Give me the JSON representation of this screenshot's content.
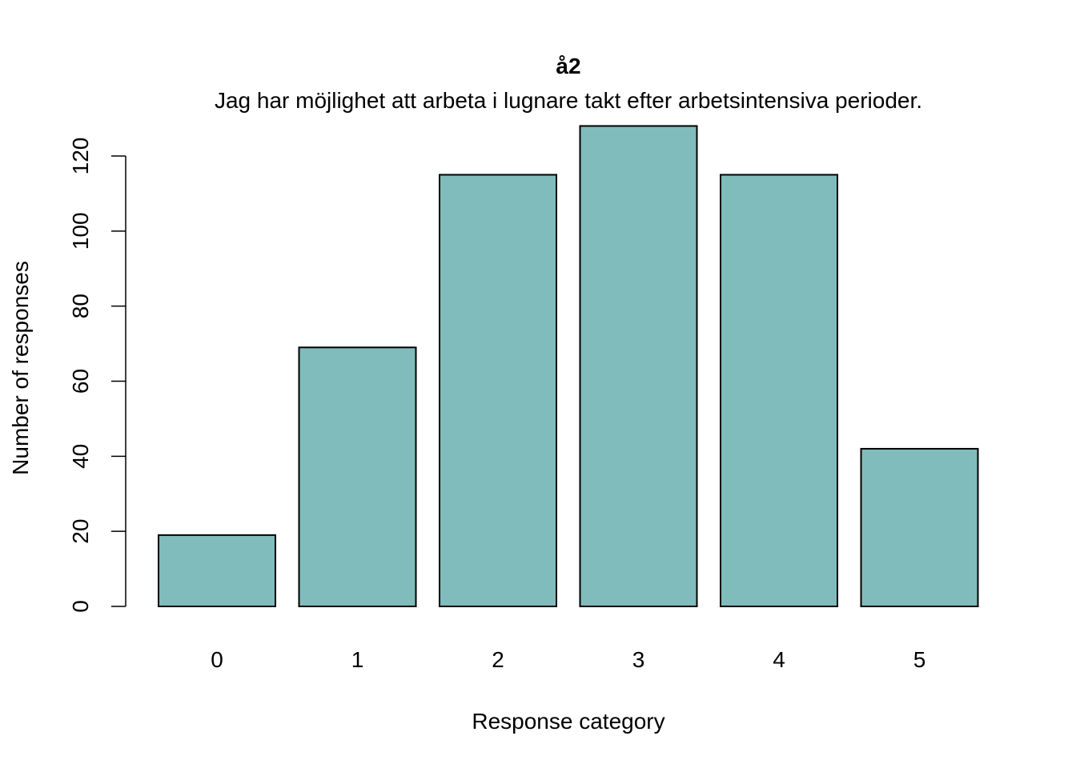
{
  "chart_data": {
    "type": "bar",
    "title": "å2",
    "subtitle": "Jag har möjlighet att arbeta i lugnare takt efter arbetsintensiva perioder.",
    "xlabel": "Response category",
    "ylabel": "Number of responses",
    "categories": [
      "0",
      "1",
      "2",
      "3",
      "4",
      "5"
    ],
    "values": [
      19,
      69,
      115,
      128,
      115,
      42
    ],
    "ylim": [
      0,
      120
    ],
    "yticks": [
      "0",
      "20",
      "40",
      "60",
      "80",
      "100",
      "120"
    ],
    "bar_color": "#80BCBB",
    "grid": false,
    "legend": "none"
  }
}
